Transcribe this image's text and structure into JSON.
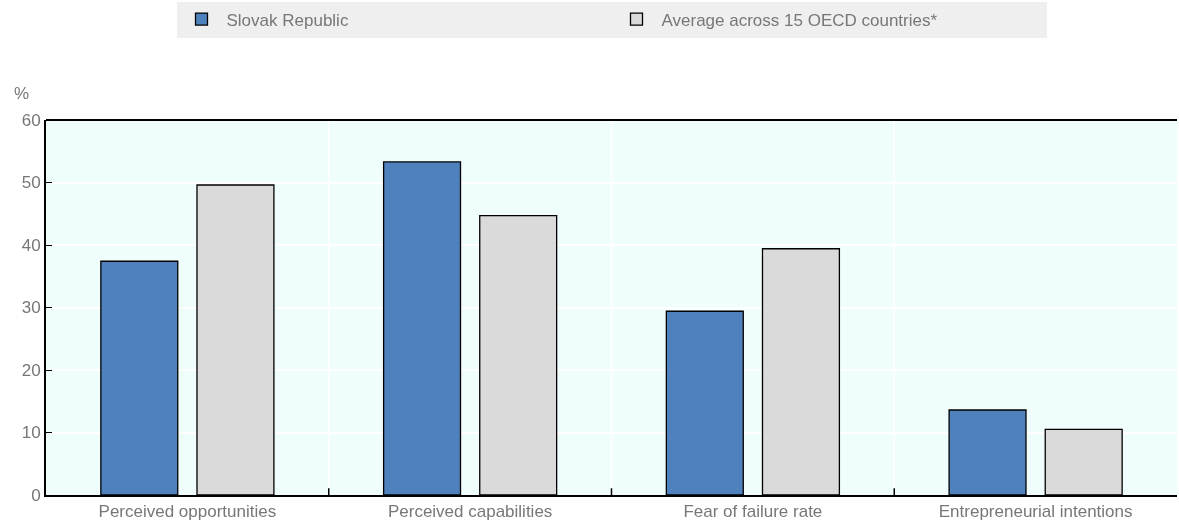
{
  "chart_data": {
    "type": "bar",
    "ylabel": "%",
    "categories": [
      "Perceived opportunities",
      "Perceived capabilities",
      "Fear of failure rate",
      "Entrepreneurial intentions"
    ],
    "series": [
      {
        "name": "Slovak Republic",
        "color": "#4f81bd",
        "values": [
          37.4,
          53.3,
          29.4,
          13.6
        ]
      },
      {
        "name": "Average across 15 OECD countries*",
        "color": "#dadada",
        "values": [
          49.6,
          44.7,
          39.4,
          10.5
        ]
      }
    ],
    "ylim": [
      0,
      60
    ],
    "yticks": [
      0,
      10,
      20,
      30,
      40,
      50,
      60
    ],
    "grid": true,
    "legend": "top"
  }
}
